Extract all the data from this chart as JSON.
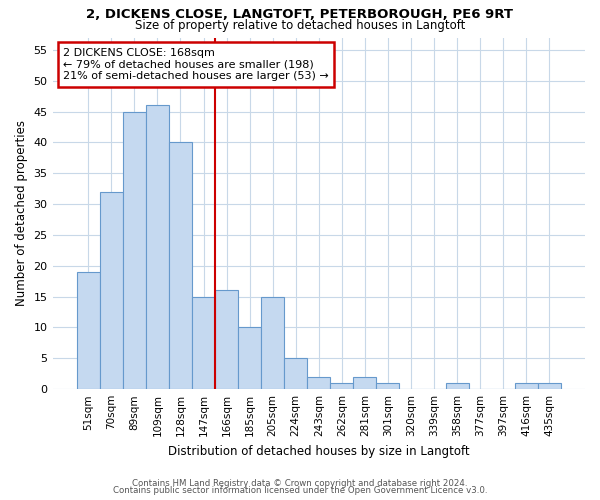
{
  "title1": "2, DICKENS CLOSE, LANGTOFT, PETERBOROUGH, PE6 9RT",
  "title2": "Size of property relative to detached houses in Langtoft",
  "xlabel": "Distribution of detached houses by size in Langtoft",
  "ylabel": "Number of detached properties",
  "bar_labels": [
    "51sqm",
    "70sqm",
    "89sqm",
    "109sqm",
    "128sqm",
    "147sqm",
    "166sqm",
    "185sqm",
    "205sqm",
    "224sqm",
    "243sqm",
    "262sqm",
    "281sqm",
    "301sqm",
    "320sqm",
    "339sqm",
    "358sqm",
    "377sqm",
    "397sqm",
    "416sqm",
    "435sqm"
  ],
  "bar_values": [
    19,
    32,
    45,
    46,
    40,
    15,
    16,
    10,
    15,
    5,
    2,
    1,
    2,
    1,
    0,
    0,
    1,
    0,
    0,
    1,
    1
  ],
  "bar_color": "#c5d9f0",
  "bar_edge_color": "#6699cc",
  "subject_line_color": "#cc0000",
  "annotation_title": "2 DICKENS CLOSE: 168sqm",
  "annotation_line1": "← 79% of detached houses are smaller (198)",
  "annotation_line2": "21% of semi-detached houses are larger (53) →",
  "annotation_box_color": "#cc0000",
  "ylim": [
    0,
    57
  ],
  "yticks": [
    0,
    5,
    10,
    15,
    20,
    25,
    30,
    35,
    40,
    45,
    50,
    55
  ],
  "footer1": "Contains HM Land Registry data © Crown copyright and database right 2024.",
  "footer2": "Contains public sector information licensed under the Open Government Licence v3.0.",
  "bg_color": "#ffffff",
  "plot_bg_color": "#ffffff",
  "grid_color": "#c8d8e8"
}
